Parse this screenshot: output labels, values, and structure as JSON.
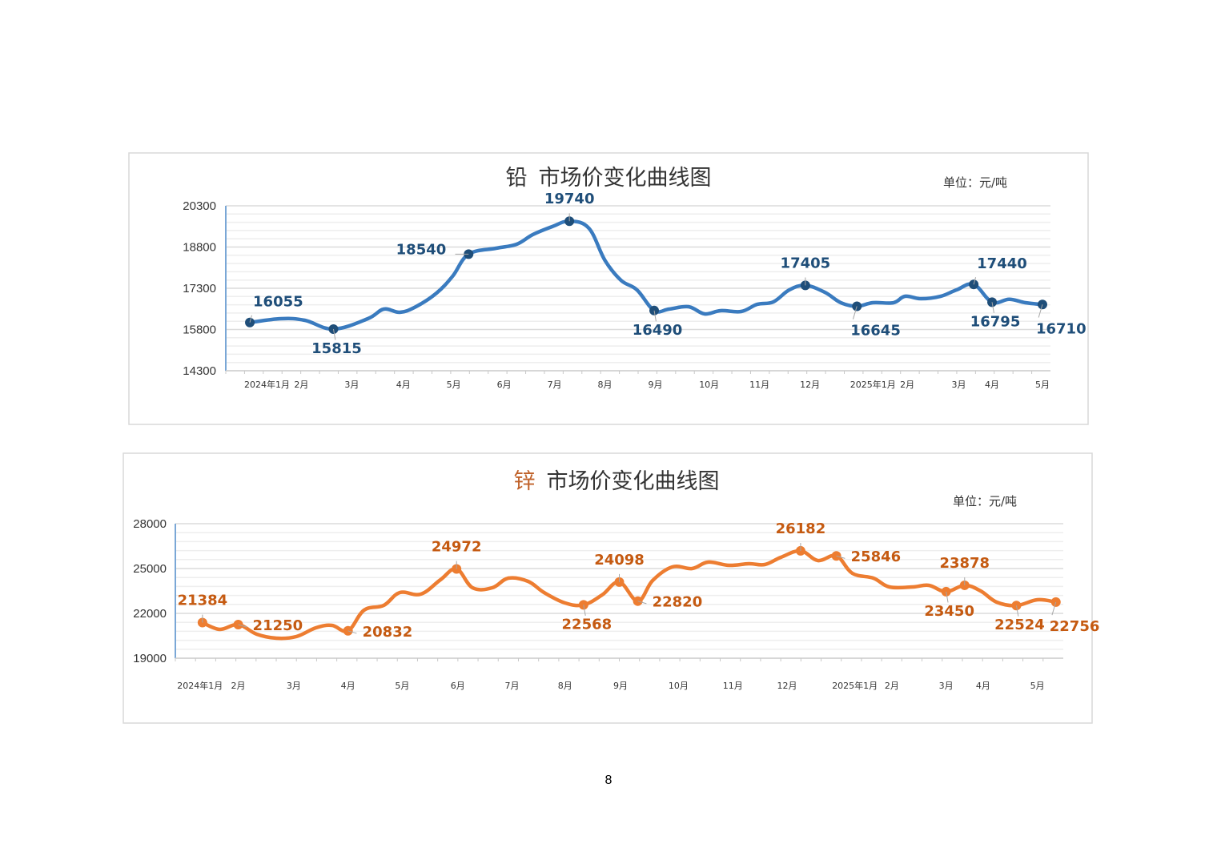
{
  "page_number": "8",
  "chart_data": [
    {
      "type": "line",
      "metal": "铅",
      "title": "市场价变化曲线图",
      "unit": "单位：元/吨",
      "line_color": "#3a7bbf",
      "marker_color": "#1f4e79",
      "label_color": "#1f4e79",
      "title_metal_color": "#333333",
      "ylim": [
        14300,
        20300
      ],
      "yticks": [
        14300,
        15800,
        17300,
        18800,
        20300
      ],
      "xlim": [
        0,
        72
      ],
      "x_unit": "week",
      "xticks": [
        {
          "x": 3.6,
          "label": "2024年1月"
        },
        {
          "x": 6.6,
          "label": "2月"
        },
        {
          "x": 11.0,
          "label": "3月"
        },
        {
          "x": 15.5,
          "label": "4月"
        },
        {
          "x": 19.9,
          "label": "5月"
        },
        {
          "x": 24.3,
          "label": "6月"
        },
        {
          "x": 28.7,
          "label": "7月"
        },
        {
          "x": 33.1,
          "label": "8月"
        },
        {
          "x": 37.5,
          "label": "9月"
        },
        {
          "x": 42.2,
          "label": "10月"
        },
        {
          "x": 46.6,
          "label": "11月"
        },
        {
          "x": 51.0,
          "label": "12月"
        },
        {
          "x": 56.5,
          "label": "2025年1月"
        },
        {
          "x": 59.5,
          "label": "2月"
        },
        {
          "x": 64.0,
          "label": "3月"
        },
        {
          "x": 66.9,
          "label": "4月"
        },
        {
          "x": 71.3,
          "label": "5月"
        }
      ],
      "series": [
        [
          2.1,
          16055
        ],
        [
          4.8,
          16193
        ],
        [
          6.9,
          16135
        ],
        [
          9.4,
          15815
        ],
        [
          12.4,
          16193
        ],
        [
          13.8,
          16543
        ],
        [
          15.2,
          16426
        ],
        [
          16.6,
          16630
        ],
        [
          18.4,
          17125
        ],
        [
          19.8,
          17737
        ],
        [
          21.2,
          18540
        ],
        [
          23.6,
          18756
        ],
        [
          25.4,
          18902
        ],
        [
          26.8,
          19251
        ],
        [
          28.5,
          19543
        ],
        [
          30.0,
          19740
        ],
        [
          31.7,
          19484
        ],
        [
          33.1,
          18319
        ],
        [
          34.5,
          17591
        ],
        [
          35.9,
          17241
        ],
        [
          37.4,
          16490
        ],
        [
          38.7,
          16543
        ],
        [
          40.4,
          16630
        ],
        [
          41.8,
          16368
        ],
        [
          43.2,
          16485
        ],
        [
          45.0,
          16455
        ],
        [
          46.4,
          16717
        ],
        [
          47.8,
          16804
        ],
        [
          49.2,
          17241
        ],
        [
          50.6,
          17405
        ],
        [
          52.3,
          17154
        ],
        [
          53.7,
          16775
        ],
        [
          55.1,
          16645
        ],
        [
          56.5,
          16775
        ],
        [
          58.3,
          16775
        ],
        [
          59.3,
          17008
        ],
        [
          60.7,
          16921
        ],
        [
          62.4,
          17008
        ],
        [
          63.8,
          17241
        ],
        [
          65.3,
          17440
        ],
        [
          66.9,
          16795
        ],
        [
          68.4,
          16900
        ],
        [
          69.8,
          16775
        ],
        [
          71.3,
          16710
        ]
      ],
      "annotations": [
        {
          "x": 2.1,
          "value": 16055,
          "label": "16055",
          "placement": "above-right"
        },
        {
          "x": 9.4,
          "value": 15815,
          "label": "15815",
          "placement": "below"
        },
        {
          "x": 21.2,
          "value": 18540,
          "label": "18540",
          "placement": "left"
        },
        {
          "x": 30.0,
          "value": 19740,
          "label": "19740",
          "placement": "above"
        },
        {
          "x": 37.4,
          "value": 16490,
          "label": "16490",
          "placement": "below"
        },
        {
          "x": 50.6,
          "value": 17405,
          "label": "17405",
          "placement": "above"
        },
        {
          "x": 55.1,
          "value": 16645,
          "label": "16645",
          "placement": "below-right"
        },
        {
          "x": 65.3,
          "value": 17440,
          "label": "17440",
          "placement": "above-right"
        },
        {
          "x": 66.9,
          "value": 16795,
          "label": "16795",
          "placement": "below"
        },
        {
          "x": 71.3,
          "value": 16710,
          "label": "16710",
          "placement": "below-right"
        }
      ]
    },
    {
      "type": "line",
      "metal": "锌",
      "title": "市场价变化曲线图",
      "unit": "单位：元/吨",
      "line_color": "#ed7d31",
      "marker_color": "#ed7d31",
      "label_color": "#c55a11",
      "title_metal_color": "#c0622a",
      "ylim": [
        19000,
        28000
      ],
      "yticks": [
        19000,
        22000,
        25000,
        28000
      ],
      "xlim": [
        0,
        72
      ],
      "x_unit": "week",
      "xticks": [
        {
          "x": 2.0,
          "label": "2024年1月"
        },
        {
          "x": 5.1,
          "label": "2月"
        },
        {
          "x": 9.6,
          "label": "3月"
        },
        {
          "x": 14.0,
          "label": "4月"
        },
        {
          "x": 18.4,
          "label": "5月"
        },
        {
          "x": 22.9,
          "label": "6月"
        },
        {
          "x": 27.3,
          "label": "7月"
        },
        {
          "x": 31.6,
          "label": "8月"
        },
        {
          "x": 36.1,
          "label": "9月"
        },
        {
          "x": 40.8,
          "label": "10月"
        },
        {
          "x": 45.2,
          "label": "11月"
        },
        {
          "x": 49.6,
          "label": "12月"
        },
        {
          "x": 55.1,
          "label": "2025年1月"
        },
        {
          "x": 58.1,
          "label": "2月"
        },
        {
          "x": 62.5,
          "label": "3月"
        },
        {
          "x": 65.5,
          "label": "4月"
        },
        {
          "x": 69.9,
          "label": "5月"
        }
      ],
      "series": [
        [
          2.2,
          21384
        ],
        [
          3.6,
          20929
        ],
        [
          5.1,
          21250
        ],
        [
          6.6,
          20607
        ],
        [
          8.2,
          20339
        ],
        [
          9.8,
          20447
        ],
        [
          11.4,
          21036
        ],
        [
          12.7,
          21197
        ],
        [
          14.0,
          20832
        ],
        [
          15.3,
          22214
        ],
        [
          16.9,
          22536
        ],
        [
          18.2,
          23393
        ],
        [
          19.9,
          23286
        ],
        [
          21.5,
          24250
        ],
        [
          22.8,
          24972
        ],
        [
          24.1,
          23714
        ],
        [
          25.7,
          23714
        ],
        [
          27.0,
          24357
        ],
        [
          28.6,
          24143
        ],
        [
          29.9,
          23393
        ],
        [
          31.6,
          22696
        ],
        [
          33.1,
          22568
        ],
        [
          34.6,
          23232
        ],
        [
          36.0,
          24098
        ],
        [
          37.5,
          22820
        ],
        [
          38.7,
          24196
        ],
        [
          40.3,
          25107
        ],
        [
          41.9,
          25000
        ],
        [
          43.2,
          25429
        ],
        [
          44.9,
          25214
        ],
        [
          46.5,
          25321
        ],
        [
          47.8,
          25268
        ],
        [
          49.1,
          25750
        ],
        [
          50.7,
          26182
        ],
        [
          52.1,
          25536
        ],
        [
          53.6,
          25846
        ],
        [
          54.9,
          24679
        ],
        [
          56.6,
          24357
        ],
        [
          57.9,
          23768
        ],
        [
          59.8,
          23768
        ],
        [
          61.1,
          23875
        ],
        [
          62.5,
          23450
        ],
        [
          64.0,
          23878
        ],
        [
          65.3,
          23500
        ],
        [
          66.6,
          22750
        ],
        [
          68.2,
          22524
        ],
        [
          69.9,
          22911
        ],
        [
          71.4,
          22756
        ]
      ],
      "annotations": [
        {
          "x": 2.2,
          "value": 21384,
          "label": "21384",
          "placement": "above"
        },
        {
          "x": 5.1,
          "value": 21250,
          "label": "21250",
          "placement": "right"
        },
        {
          "x": 14.0,
          "value": 20832,
          "label": "20832",
          "placement": "right"
        },
        {
          "x": 22.8,
          "value": 24972,
          "label": "24972",
          "placement": "above"
        },
        {
          "x": 33.1,
          "value": 22568,
          "label": "22568",
          "placement": "below"
        },
        {
          "x": 36.0,
          "value": 24098,
          "label": "24098",
          "placement": "above"
        },
        {
          "x": 37.5,
          "value": 22820,
          "label": "22820",
          "placement": "right"
        },
        {
          "x": 50.7,
          "value": 26182,
          "label": "26182",
          "placement": "above"
        },
        {
          "x": 53.6,
          "value": 25846,
          "label": "25846",
          "placement": "right"
        },
        {
          "x": 62.5,
          "value": 23450,
          "label": "23450",
          "placement": "below"
        },
        {
          "x": 64.0,
          "value": 23878,
          "label": "23878",
          "placement": "above"
        },
        {
          "x": 68.2,
          "value": 22524,
          "label": "22524",
          "placement": "below"
        },
        {
          "x": 71.4,
          "value": 22756,
          "label": "22756",
          "placement": "below-right"
        }
      ]
    }
  ]
}
